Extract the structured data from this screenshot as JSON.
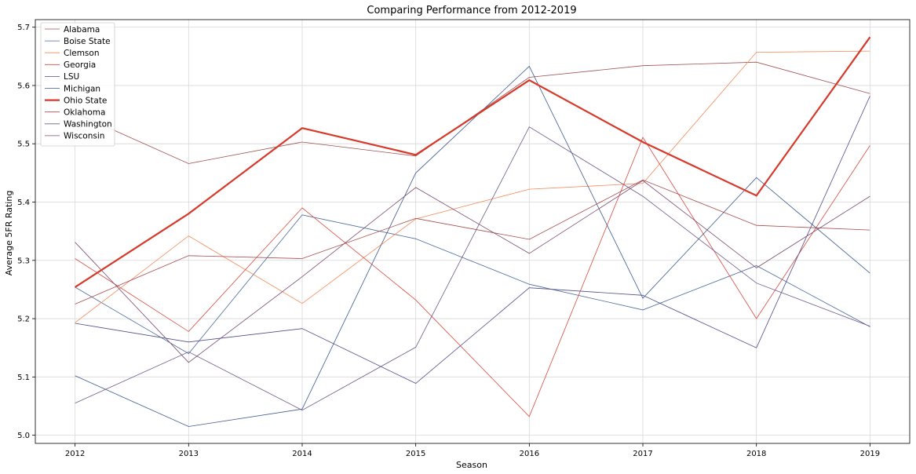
{
  "chart_data": {
    "type": "line",
    "title": "Comparing Performance from 2012-2019",
    "xlabel": "Season",
    "ylabel": "Average 5FR Rating",
    "x": [
      2012,
      2013,
      2014,
      2015,
      2016,
      2017,
      2018,
      2019
    ],
    "x_ticks": [
      "2012",
      "2013",
      "2014",
      "2015",
      "2016",
      "2017",
      "2018",
      "2019"
    ],
    "y_ticks": [
      "5.0",
      "5.1",
      "5.2",
      "5.3",
      "5.4",
      "5.5",
      "5.6",
      "5.7"
    ],
    "xlim": [
      2011.65,
      2019.35
    ],
    "ylim": [
      4.986,
      5.713
    ],
    "grid": true,
    "legend_position": "top-left",
    "series": [
      {
        "name": "Alabama",
        "color": "#a1504f",
        "width": 0.8,
        "values": [
          5.553,
          5.466,
          5.503,
          5.479,
          5.614,
          5.634,
          5.64,
          5.586
        ]
      },
      {
        "name": "Boise State",
        "color": "#4a6a9a",
        "width": 0.8,
        "values": [
          5.254,
          5.14,
          5.378,
          5.337,
          5.259,
          5.215,
          5.291,
          5.186
        ]
      },
      {
        "name": "Clemson",
        "color": "#f48b5a",
        "width": 0.8,
        "values": [
          5.193,
          5.342,
          5.226,
          5.371,
          5.422,
          5.432,
          5.657,
          5.659
        ]
      },
      {
        "name": "Georgia",
        "color": "#d94a3e",
        "width": 0.8,
        "values": [
          5.303,
          5.178,
          5.39,
          5.232,
          5.032,
          5.511,
          5.2,
          5.497
        ]
      },
      {
        "name": "LSU",
        "color": "#4f4e8c",
        "width": 0.8,
        "values": [
          5.192,
          5.16,
          5.183,
          5.089,
          5.253,
          5.24,
          5.15,
          5.582
        ]
      },
      {
        "name": "Michigan",
        "color": "#3d5a8f",
        "width": 0.8,
        "values": [
          5.102,
          5.015,
          5.045,
          5.45,
          5.633,
          5.235,
          5.442,
          5.278
        ]
      },
      {
        "name": "Ohio State",
        "color": "#d63a2a",
        "width": 2.2,
        "values": [
          5.254,
          5.38,
          5.527,
          5.481,
          5.609,
          5.503,
          5.411,
          5.683
        ]
      },
      {
        "name": "Oklahoma",
        "color": "#a84949",
        "width": 0.8,
        "values": [
          5.225,
          5.308,
          5.303,
          5.372,
          5.336,
          5.438,
          5.36,
          5.352
        ]
      },
      {
        "name": "Washington",
        "color": "#6e5a8a",
        "width": 0.8,
        "values": [
          5.055,
          5.143,
          5.043,
          5.151,
          5.529,
          5.41,
          5.261,
          5.187
        ]
      },
      {
        "name": "Wisconsin",
        "color": "#7a4b70",
        "width": 0.8,
        "values": [
          5.331,
          5.125,
          5.272,
          5.425,
          5.312,
          5.437,
          5.287,
          5.41
        ]
      }
    ]
  }
}
